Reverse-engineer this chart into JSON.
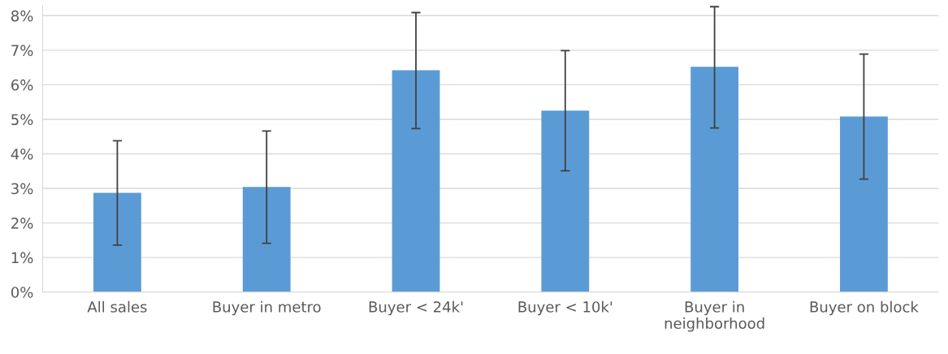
{
  "chart_data": {
    "type": "bar",
    "categories": [
      "All sales",
      "Buyer in metro",
      "Buyer < 24k'",
      "Buyer < 10k'",
      "Buyer in\nneighborhood",
      "Buyer on block"
    ],
    "values": [
      2.87,
      3.04,
      6.42,
      5.25,
      6.52,
      5.08
    ],
    "errors": [
      [
        1.36,
        4.38
      ],
      [
        1.41,
        4.66
      ],
      [
        4.73,
        8.09
      ],
      [
        3.51,
        6.99
      ],
      [
        4.75,
        8.26
      ],
      [
        3.27,
        6.89
      ]
    ],
    "color": "#5b9bd5",
    "ylim": [
      0,
      8.3
    ],
    "yticks": [
      {
        "value": 0,
        "label": "0%"
      },
      {
        "value": 1,
        "label": "1%"
      },
      {
        "value": 2,
        "label": "2%"
      },
      {
        "value": 3,
        "label": "3%"
      },
      {
        "value": 4,
        "label": "4%"
      },
      {
        "value": 5,
        "label": "5%"
      },
      {
        "value": 6,
        "label": "6%"
      },
      {
        "value": 7,
        "label": "7%"
      },
      {
        "value": 8,
        "label": "8%"
      }
    ],
    "grid": "y",
    "legend": false
  }
}
